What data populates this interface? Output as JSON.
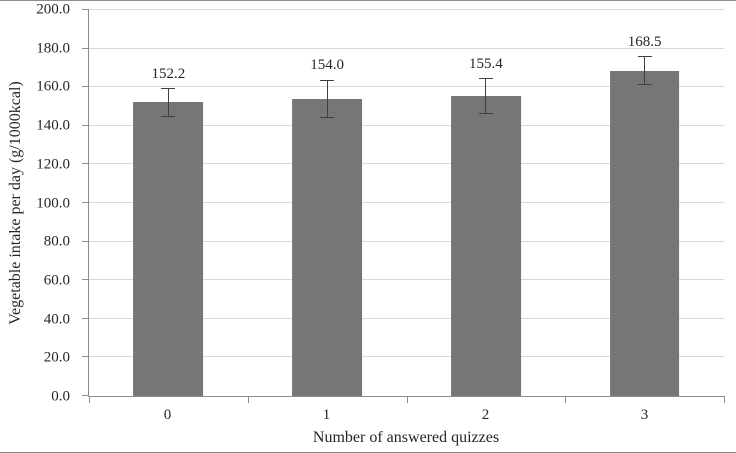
{
  "chart_data": {
    "type": "bar",
    "title": "",
    "xlabel": "Number of answered quizzes",
    "ylabel": "Vegetable intake per day (g/1000kcal)",
    "categories": [
      "0",
      "1",
      "2",
      "3"
    ],
    "values": [
      152.2,
      154.0,
      155.4,
      168.5
    ],
    "data_labels": [
      "152.2",
      "154.0",
      "155.4",
      "168.5"
    ],
    "errors": [
      7.5,
      10.0,
      9.5,
      7.5
    ],
    "ylim": [
      0,
      200
    ],
    "ytick_step": 20,
    "ytick_labels": [
      "0.0",
      "20.0",
      "40.0",
      "60.0",
      "80.0",
      "100.0",
      "120.0",
      "140.0",
      "160.0",
      "180.0",
      "200.0"
    ],
    "grid": true,
    "legend": "none",
    "bar_color": "#767676",
    "error_bar_color": "#3f3f3f",
    "gridline_color": "#d9d9d9",
    "axis_color": "#8c8c8c",
    "text_color": "#262626"
  }
}
